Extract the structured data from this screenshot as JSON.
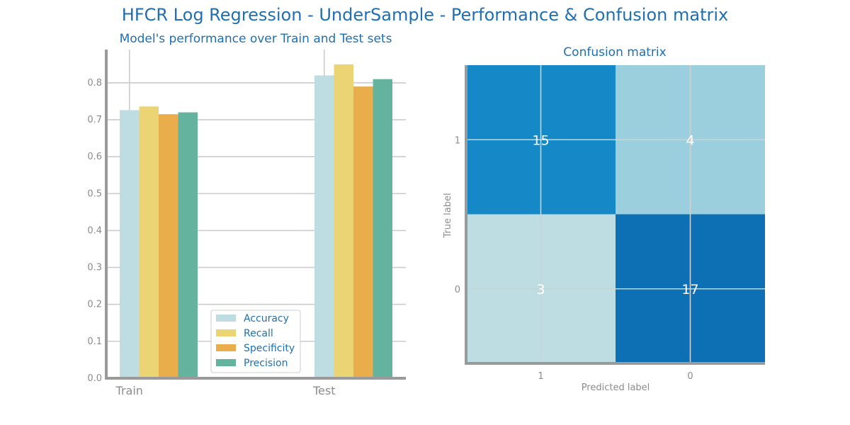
{
  "figure_title": "HFCR Log Regression - UnderSample - Performance & Confusion matrix",
  "colors": {
    "title": "#1f6fb2",
    "axis": "#9a9a9a",
    "grid": "#cccccc",
    "Accuracy": "#bedde2",
    "Recall": "#ebd473",
    "Specificity": "#e9ae4b",
    "Precision": "#63b39f",
    "cm_cells": {
      "15": "#1589c8",
      "4": "#9ccfdd",
      "3": "#bedde2",
      "17": "#0d6fb4"
    }
  },
  "chart_data": [
    {
      "type": "bar",
      "title": "Model's performance over Train and Test sets",
      "categories": [
        "Train",
        "Test"
      ],
      "series": [
        {
          "name": "Accuracy",
          "values": [
            0.726,
            0.82
          ]
        },
        {
          "name": "Recall",
          "values": [
            0.736,
            0.85
          ]
        },
        {
          "name": "Specificity",
          "values": [
            0.715,
            0.79
          ]
        },
        {
          "name": "Precision",
          "values": [
            0.72,
            0.81
          ]
        }
      ],
      "yticks": [
        "0.0",
        "0.1",
        "0.2",
        "0.3",
        "0.4",
        "0.5",
        "0.6",
        "0.7",
        "0.8"
      ],
      "ylim": [
        0,
        0.89
      ],
      "grid": true,
      "legend_position": "bottom-center"
    },
    {
      "type": "heatmap",
      "title": "Confusion matrix",
      "xlabel": "Predicted label",
      "ylabel": "True label",
      "xticklabels": [
        "1",
        "0"
      ],
      "yticklabels": [
        "1",
        "0"
      ],
      "matrix": [
        [
          15,
          4
        ],
        [
          3,
          17
        ]
      ]
    }
  ]
}
